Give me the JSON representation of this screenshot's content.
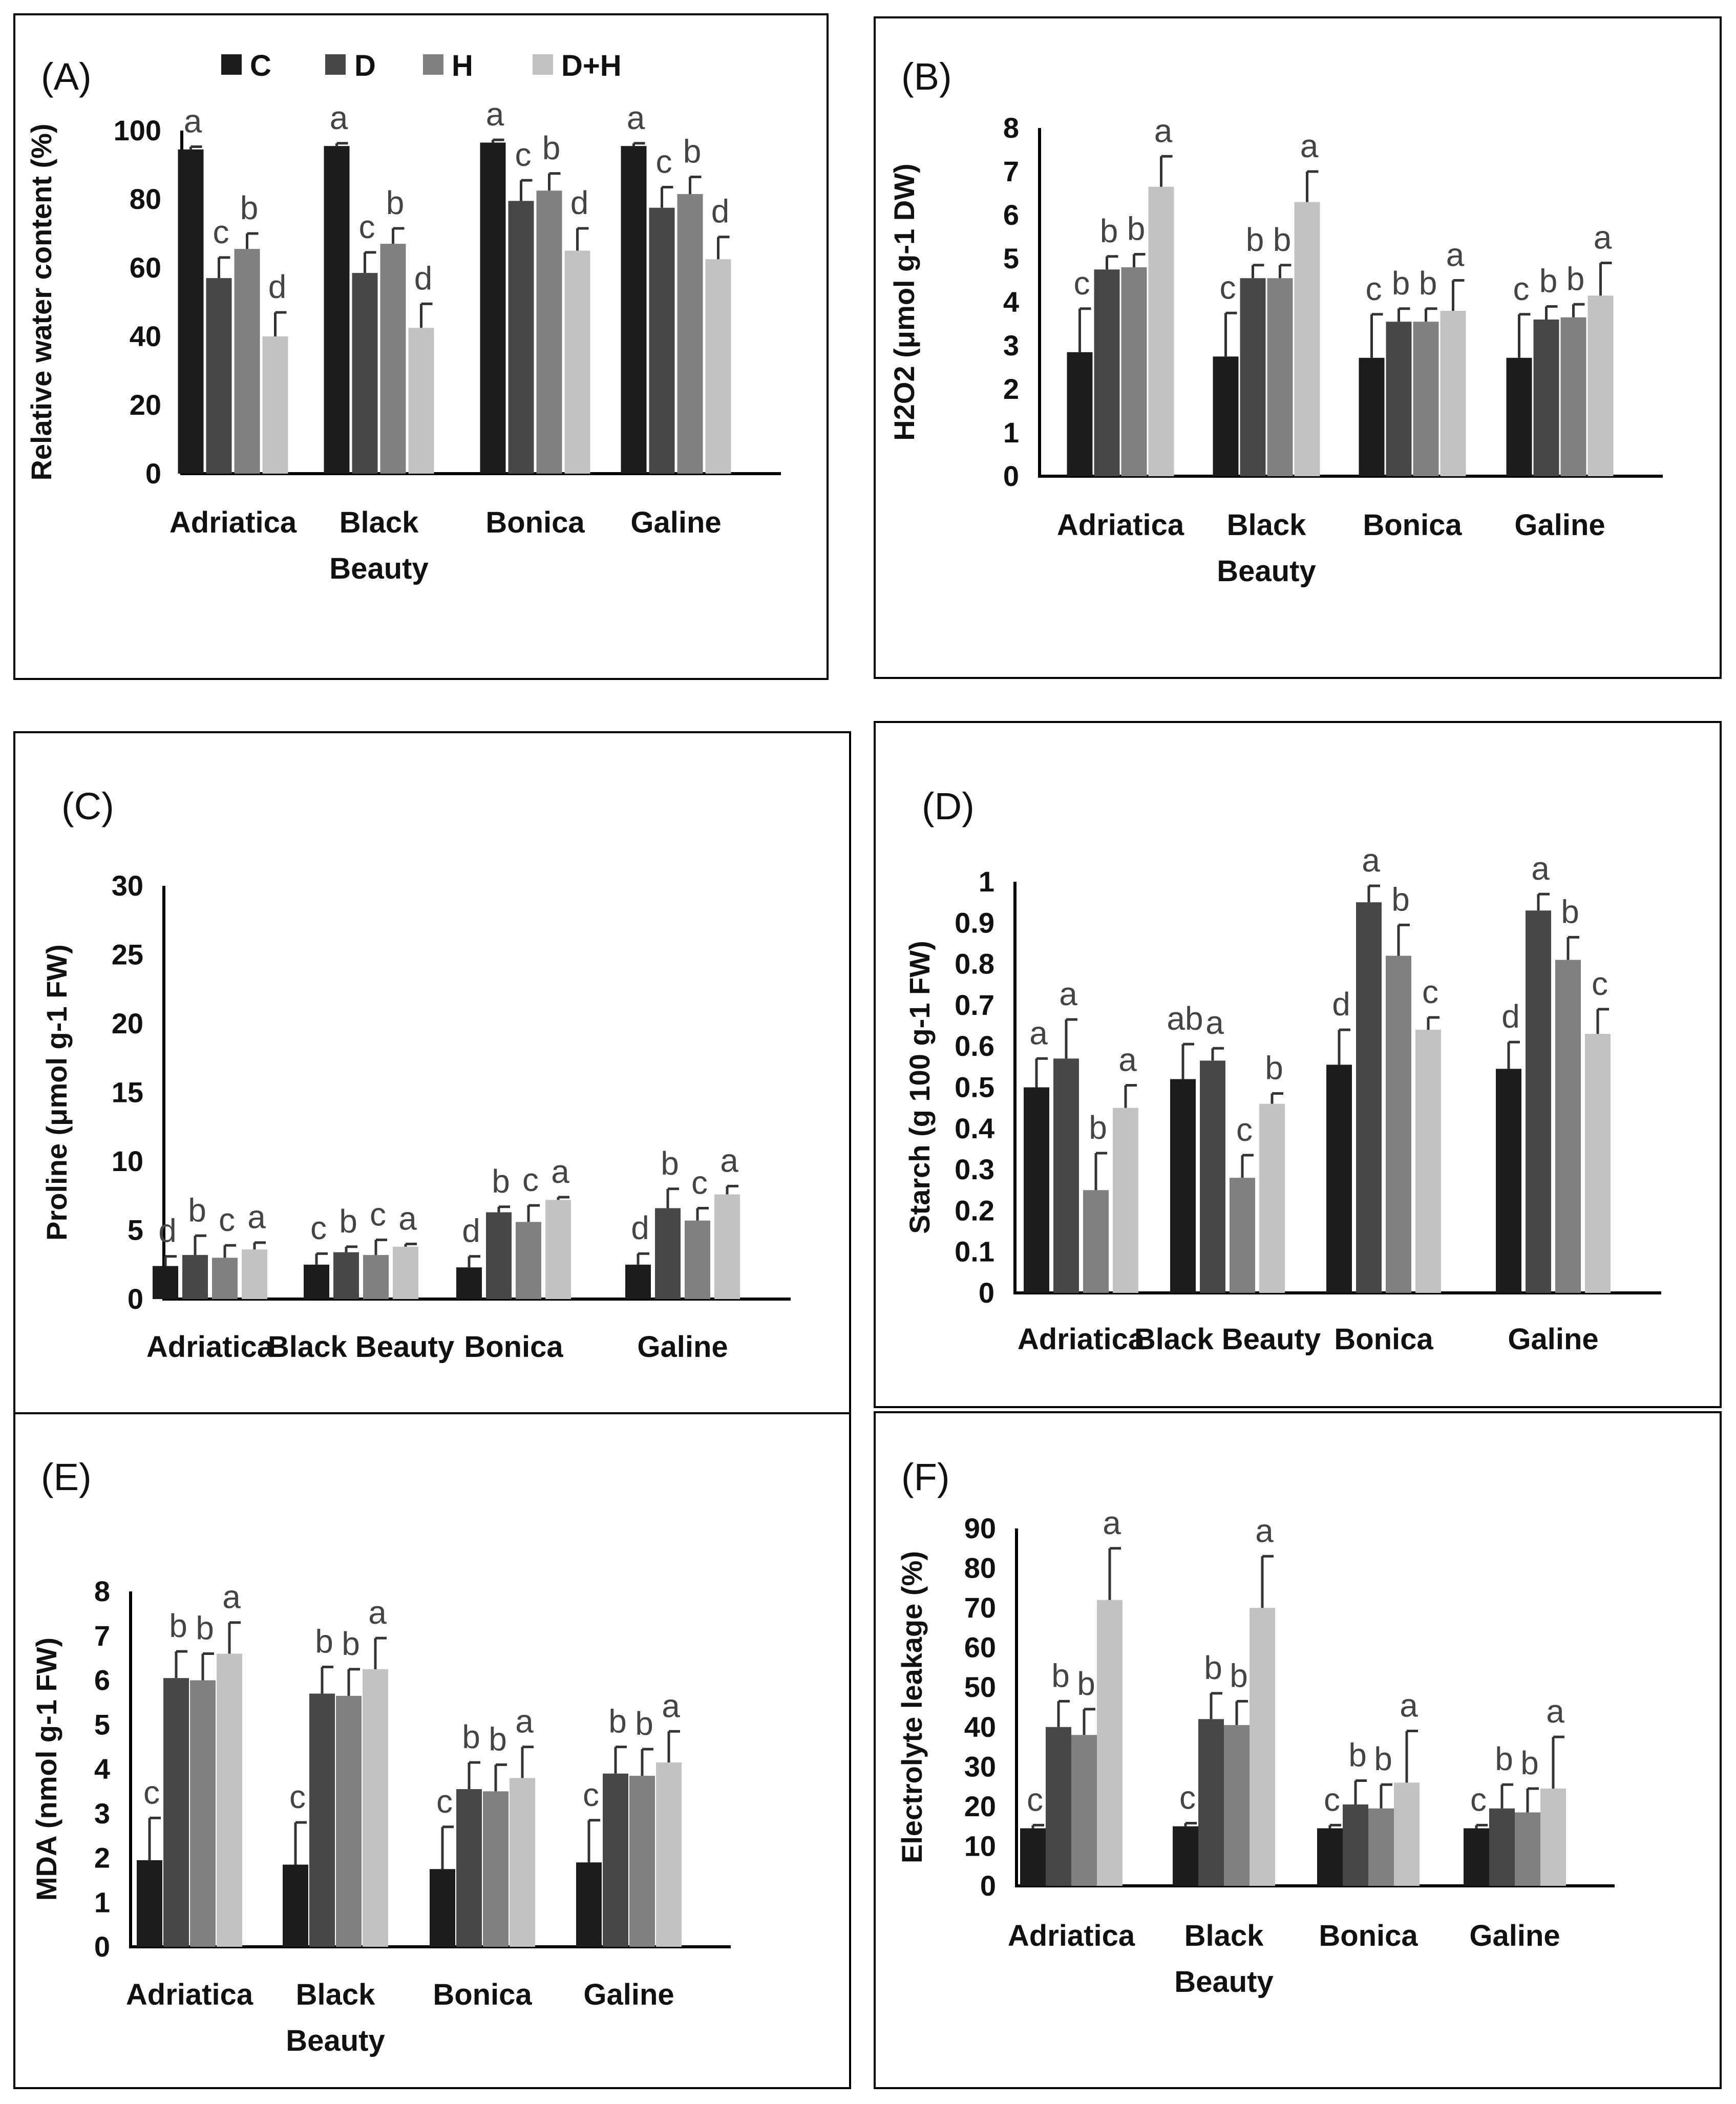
{
  "colors": {
    "C": "#1c1c1c",
    "D": "#474747",
    "H": "#808080",
    "D+H": "#c2c2c2"
  },
  "legend": [
    "C",
    "D",
    "H",
    "D+H"
  ],
  "chart_data": [
    {
      "id": "A",
      "type": "bar",
      "panel_label": "(A)",
      "ylabel": "Relative water content (%)",
      "ylim": [
        0,
        100
      ],
      "yticks": [
        "0",
        "20",
        "40",
        "60",
        "80",
        "100"
      ],
      "categories": [
        [
          "Adriatica"
        ],
        [
          "Black",
          "Beauty"
        ],
        [
          "Bonica"
        ],
        [
          "Galine"
        ]
      ],
      "series": [
        {
          "name": "C",
          "values": [
            94.5,
            95.5,
            96.5,
            95.5
          ],
          "errors": [
            0.8,
            0.8,
            0.8,
            0.8
          ],
          "letters": [
            "a",
            "a",
            "a",
            "a"
          ]
        },
        {
          "name": "D",
          "values": [
            57,
            58.5,
            79.5,
            77.5
          ],
          "errors": [
            6,
            6,
            6,
            6
          ],
          "letters": [
            "c",
            "c",
            "c",
            "c"
          ]
        },
        {
          "name": "H",
          "values": [
            65.5,
            67,
            82.5,
            81.5
          ],
          "errors": [
            4.5,
            4.5,
            5,
            5
          ],
          "letters": [
            "b",
            "b",
            "b",
            "b"
          ]
        },
        {
          "name": "D+H",
          "values": [
            40,
            42.5,
            65,
            62.5
          ],
          "errors": [
            7,
            7,
            6.5,
            6.5
          ],
          "letters": [
            "d",
            "d",
            "d",
            "d"
          ]
        }
      ]
    },
    {
      "id": "B",
      "type": "bar",
      "panel_label": "(B)",
      "ylabel": "H2O2 (μmol g-1 DW)",
      "ylim": [
        0,
        8
      ],
      "yticks": [
        "0",
        "1",
        "2",
        "3",
        "4",
        "5",
        "6",
        "7",
        "8"
      ],
      "categories": [
        [
          "Adriatica"
        ],
        [
          "Black",
          "Beauty"
        ],
        [
          "Bonica"
        ],
        [
          "Galine"
        ]
      ],
      "series": [
        {
          "name": "C",
          "values": [
            2.85,
            2.75,
            2.72,
            2.72
          ],
          "errors": [
            1.0,
            1.0,
            1.0,
            1.0
          ],
          "letters": [
            "c",
            "c",
            "c",
            "c"
          ]
        },
        {
          "name": "D",
          "values": [
            4.75,
            4.55,
            3.55,
            3.6
          ],
          "errors": [
            0.3,
            0.3,
            0.3,
            0.3
          ],
          "letters": [
            "b",
            "b",
            "b",
            "b"
          ]
        },
        {
          "name": "H",
          "values": [
            4.8,
            4.55,
            3.55,
            3.65
          ],
          "errors": [
            0.3,
            0.3,
            0.3,
            0.3
          ],
          "letters": [
            "b",
            "b",
            "b",
            "b"
          ]
        },
        {
          "name": "D+H",
          "values": [
            6.65,
            6.3,
            3.8,
            4.15
          ],
          "errors": [
            0.7,
            0.7,
            0.7,
            0.75
          ],
          "letters": [
            "a",
            "a",
            "a",
            "a"
          ]
        }
      ]
    },
    {
      "id": "C",
      "type": "bar",
      "panel_label": "(C)",
      "ylabel": "Proline (μmol g-1 FW)",
      "ylim": [
        0,
        30
      ],
      "yticks": [
        "0",
        "5",
        "10",
        "15",
        "20",
        "25",
        "30"
      ],
      "categories": [
        [
          "Adriatica"
        ],
        [
          "Black Beauty"
        ],
        [
          "Bonica"
        ],
        [
          "Galine"
        ]
      ],
      "series": [
        {
          "name": "C",
          "values": [
            2.4,
            2.5,
            2.3,
            2.5
          ],
          "errors": [
            0.7,
            0.8,
            0.8,
            0.8
          ],
          "letters": [
            "d",
            "c",
            "d",
            "d"
          ]
        },
        {
          "name": "D",
          "values": [
            3.2,
            3.4,
            6.3,
            6.6
          ],
          "errors": [
            1.4,
            0.4,
            0.4,
            1.4
          ],
          "letters": [
            "b",
            "b",
            "b",
            "b"
          ]
        },
        {
          "name": "H",
          "values": [
            3.0,
            3.2,
            5.6,
            5.7
          ],
          "errors": [
            0.9,
            1.1,
            1.2,
            0.9
          ],
          "letters": [
            "c",
            "c",
            "c",
            "c"
          ]
        },
        {
          "name": "D+H",
          "values": [
            3.6,
            3.8,
            7.2,
            7.6
          ],
          "errors": [
            0.5,
            0.2,
            0.2,
            0.6
          ],
          "letters": [
            "a",
            "a",
            "a",
            "a"
          ]
        }
      ]
    },
    {
      "id": "D",
      "type": "bar",
      "panel_label": "(D)",
      "ylabel": "Starch (g 100 g-1 FW)",
      "ylim": [
        0,
        1
      ],
      "yticks": [
        "0",
        "0.1",
        "0.2",
        "0.3",
        "0.4",
        "0.5",
        "0.6",
        "0.7",
        "0.8",
        "0.9",
        "1"
      ],
      "categories": [
        [
          "Adriatica"
        ],
        [
          "Black Beauty"
        ],
        [
          "Bonica"
        ],
        [
          "Galine"
        ]
      ],
      "series": [
        {
          "name": "C",
          "values": [
            0.5,
            0.52,
            0.555,
            0.545
          ],
          "errors": [
            0.07,
            0.085,
            0.085,
            0.065
          ],
          "letters": [
            "a",
            "ab",
            "d",
            "d"
          ]
        },
        {
          "name": "D",
          "values": [
            0.57,
            0.565,
            0.95,
            0.93
          ],
          "errors": [
            0.095,
            0.03,
            0.04,
            0.04
          ],
          "letters": [
            "a",
            "a",
            "a",
            "a"
          ]
        },
        {
          "name": "H",
          "values": [
            0.25,
            0.28,
            0.82,
            0.81
          ],
          "errors": [
            0.09,
            0.055,
            0.075,
            0.055
          ],
          "letters": [
            "b",
            "c",
            "b",
            "b"
          ]
        },
        {
          "name": "D+H",
          "values": [
            0.45,
            0.46,
            0.64,
            0.63
          ],
          "errors": [
            0.055,
            0.025,
            0.03,
            0.06
          ],
          "letters": [
            "a",
            "b",
            "c",
            "c"
          ]
        }
      ]
    },
    {
      "id": "E",
      "type": "bar",
      "panel_label": "(E)",
      "ylabel": "MDA (nmol g-1 FW)",
      "ylim": [
        0,
        8
      ],
      "yticks": [
        "0",
        "1",
        "2",
        "3",
        "4",
        "5",
        "6",
        "7",
        "8"
      ],
      "categories": [
        [
          "Adriatica"
        ],
        [
          "Black",
          "Beauty"
        ],
        [
          "Bonica"
        ],
        [
          "Galine"
        ]
      ],
      "series": [
        {
          "name": "C",
          "values": [
            1.95,
            1.85,
            1.75,
            1.9
          ],
          "errors": [
            0.95,
            0.95,
            0.95,
            0.95
          ],
          "letters": [
            "c",
            "c",
            "c",
            "c"
          ]
        },
        {
          "name": "D",
          "values": [
            6.05,
            5.7,
            3.55,
            3.9
          ],
          "errors": [
            0.6,
            0.6,
            0.6,
            0.6
          ],
          "letters": [
            "b",
            "b",
            "b",
            "b"
          ]
        },
        {
          "name": "H",
          "values": [
            6.0,
            5.65,
            3.5,
            3.85
          ],
          "errors": [
            0.6,
            0.6,
            0.6,
            0.6
          ],
          "letters": [
            "b",
            "b",
            "b",
            "b"
          ]
        },
        {
          "name": "D+H",
          "values": [
            6.6,
            6.25,
            3.8,
            4.15
          ],
          "errors": [
            0.7,
            0.7,
            0.7,
            0.7
          ],
          "letters": [
            "a",
            "a",
            "a",
            "a"
          ]
        }
      ]
    },
    {
      "id": "F",
      "type": "bar",
      "panel_label": "(F)",
      "ylabel": "Electrolyte leakage (%)",
      "ylim": [
        0,
        90
      ],
      "yticks": [
        "0",
        "10",
        "20",
        "30",
        "40",
        "50",
        "60",
        "70",
        "80",
        "90"
      ],
      "categories": [
        [
          "Adriatica"
        ],
        [
          "Black",
          "Beauty"
        ],
        [
          "Bonica"
        ],
        [
          "Galine"
        ]
      ],
      "series": [
        {
          "name": "C",
          "values": [
            14.5,
            15,
            14.5,
            14.5
          ],
          "errors": [
            0.8,
            0.8,
            0.8,
            0.8
          ],
          "letters": [
            "c",
            "c",
            "c",
            "c"
          ]
        },
        {
          "name": "D",
          "values": [
            40,
            42,
            20.5,
            19.5
          ],
          "errors": [
            6.5,
            6.5,
            6,
            6
          ],
          "letters": [
            "b",
            "b",
            "b",
            "b"
          ]
        },
        {
          "name": "H",
          "values": [
            38,
            40.5,
            19.5,
            18.5
          ],
          "errors": [
            6.5,
            6,
            6,
            6
          ],
          "letters": [
            "b",
            "b",
            "b",
            "b"
          ]
        },
        {
          "name": "D+H",
          "values": [
            72,
            70,
            26,
            24.5
          ],
          "errors": [
            13,
            13,
            13,
            13
          ],
          "letters": [
            "a",
            "a",
            "a",
            "a"
          ]
        }
      ]
    }
  ]
}
